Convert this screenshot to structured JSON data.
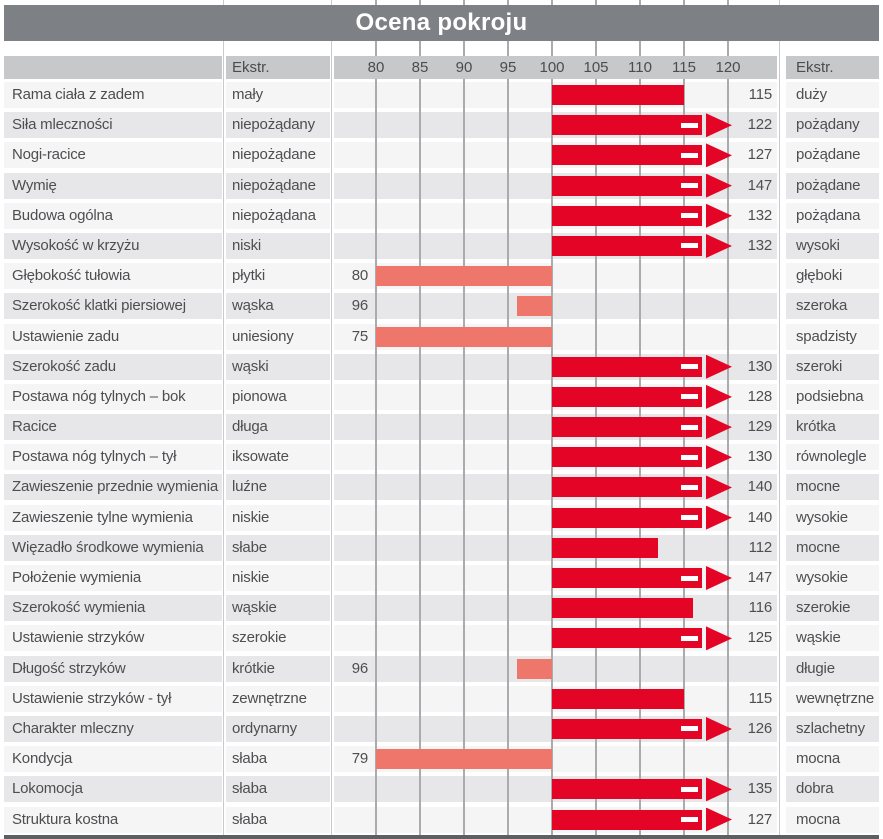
{
  "title": "Ocena pokroju",
  "header": {
    "ekstr_left": "Ekstr.",
    "ekstr_right": "Ekstr.",
    "ticks": [
      80,
      85,
      90,
      95,
      100,
      105,
      110,
      115,
      120
    ]
  },
  "chart_data": {
    "type": "bar",
    "orientation": "horizontal",
    "baseline": 100,
    "axis": {
      "min": 80,
      "max": 120,
      "step": 5
    },
    "arrow_cutoff": 120,
    "colors": {
      "bar_above_baseline": "#e30426",
      "bar_below_baseline": "#ee766b",
      "title_bg": "#7d8084",
      "header_bg": "#c7c8ca",
      "bottom_border": "#5e5f61"
    },
    "rows": [
      {
        "trait": "Rama ciała z zadem",
        "extreme_low": "mały",
        "value": 115,
        "extreme_high": "duży"
      },
      {
        "trait": "Siła mleczności",
        "extreme_low": "niepożądany",
        "value": 122,
        "extreme_high": "pożądany"
      },
      {
        "trait": "Nogi-racice",
        "extreme_low": "niepożądane",
        "value": 127,
        "extreme_high": "pożądane"
      },
      {
        "trait": "Wymię",
        "extreme_low": "niepożądane",
        "value": 147,
        "extreme_high": "pożądane"
      },
      {
        "trait": "Budowa ogólna",
        "extreme_low": "niepożądana",
        "value": 132,
        "extreme_high": "pożądana"
      },
      {
        "trait": "Wysokość w krzyżu",
        "extreme_low": "niski",
        "value": 132,
        "extreme_high": "wysoki"
      },
      {
        "trait": "Głębokość tułowia",
        "extreme_low": "płytki",
        "value": 80,
        "extreme_high": "głęboki"
      },
      {
        "trait": "Szerokość klatki piersiowej",
        "extreme_low": "wąska",
        "value": 96,
        "extreme_high": "szeroka"
      },
      {
        "trait": "Ustawienie zadu",
        "extreme_low": "uniesiony",
        "value": 75,
        "extreme_high": "spadzisty"
      },
      {
        "trait": "Szerokość zadu",
        "extreme_low": "wąski",
        "value": 130,
        "extreme_high": "szeroki"
      },
      {
        "trait": "Postawa nóg tylnych –  bok",
        "extreme_low": "pionowa",
        "value": 128,
        "extreme_high": "podsiebna"
      },
      {
        "trait": "Racice",
        "extreme_low": "długa",
        "value": 129,
        "extreme_high": "krótka"
      },
      {
        "trait": "Postawa nóg tylnych –  tył",
        "extreme_low": "iksowate",
        "value": 130,
        "extreme_high": "równolegle"
      },
      {
        "trait": "Zawieszenie przednie wymienia",
        "extreme_low": "luźne",
        "value": 140,
        "extreme_high": "mocne"
      },
      {
        "trait": "Zawieszenie tylne wymienia",
        "extreme_low": "niskie",
        "value": 140,
        "extreme_high": "wysokie"
      },
      {
        "trait": "Więzadło środkowe wymienia",
        "extreme_low": "słabe",
        "value": 112,
        "extreme_high": "mocne"
      },
      {
        "trait": "Położenie wymienia",
        "extreme_low": "niskie",
        "value": 147,
        "extreme_high": "wysokie"
      },
      {
        "trait": "Szerokość wymienia",
        "extreme_low": "wąskie",
        "value": 116,
        "extreme_high": "szerokie"
      },
      {
        "trait": "Ustawienie strzyków",
        "extreme_low": "szerokie",
        "value": 125,
        "extreme_high": "wąskie"
      },
      {
        "trait": "Długość strzyków",
        "extreme_low": "krótkie",
        "value": 96,
        "extreme_high": "długie"
      },
      {
        "trait": "Ustawienie strzyków - tył",
        "extreme_low": "zewnętrzne",
        "value": 115,
        "extreme_high": "wewnętrzne"
      },
      {
        "trait": "Charakter mleczny",
        "extreme_low": "ordynarny",
        "value": 126,
        "extreme_high": "szlachetny"
      },
      {
        "trait": "Kondycja",
        "extreme_low": "słaba",
        "value": 79,
        "extreme_high": "mocna"
      },
      {
        "trait": "Lokomocja",
        "extreme_low": "słaba",
        "value": 135,
        "extreme_high": "dobra"
      },
      {
        "trait": "Struktura kostna",
        "extreme_low": "słaba",
        "value": 127,
        "extreme_high": "mocna"
      }
    ]
  }
}
